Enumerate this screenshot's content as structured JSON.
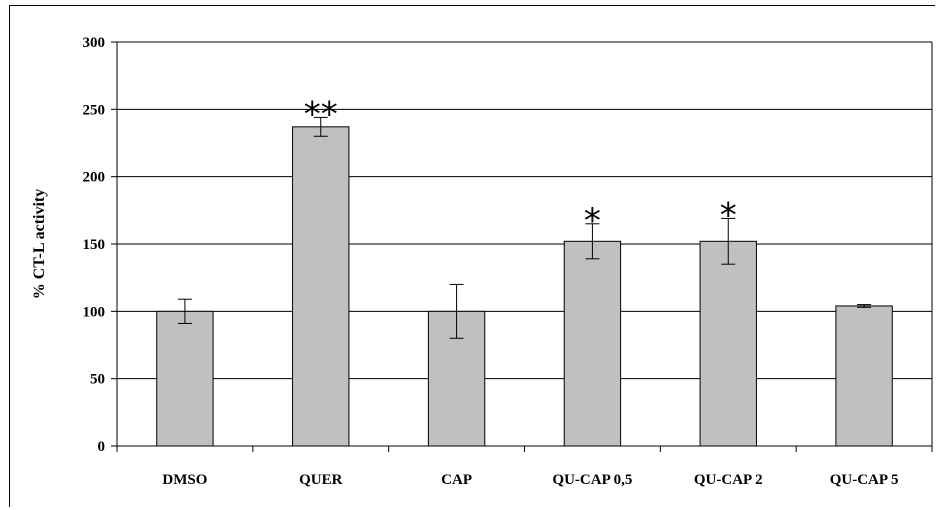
{
  "chart_data": {
    "type": "bar",
    "title": "",
    "xlabel": "",
    "ylabel": "% CT-L activity",
    "ylim": [
      0,
      300
    ],
    "yticks": [
      0,
      50,
      100,
      150,
      200,
      250,
      300
    ],
    "grid": true,
    "categories": [
      "DMSO",
      "QUER",
      "CAP",
      "QU-CAP 0,5",
      "QU-CAP 2",
      "QU-CAP 5"
    ],
    "values": [
      100,
      237,
      100,
      152,
      152,
      104
    ],
    "errors": [
      9,
      7,
      20,
      13,
      17,
      1
    ],
    "annotations": [
      "",
      "**",
      "",
      "*",
      "*",
      ""
    ],
    "colors": {
      "bar": "#c0c0c0",
      "bar_edge": "#000000",
      "grid": "#000000"
    }
  }
}
